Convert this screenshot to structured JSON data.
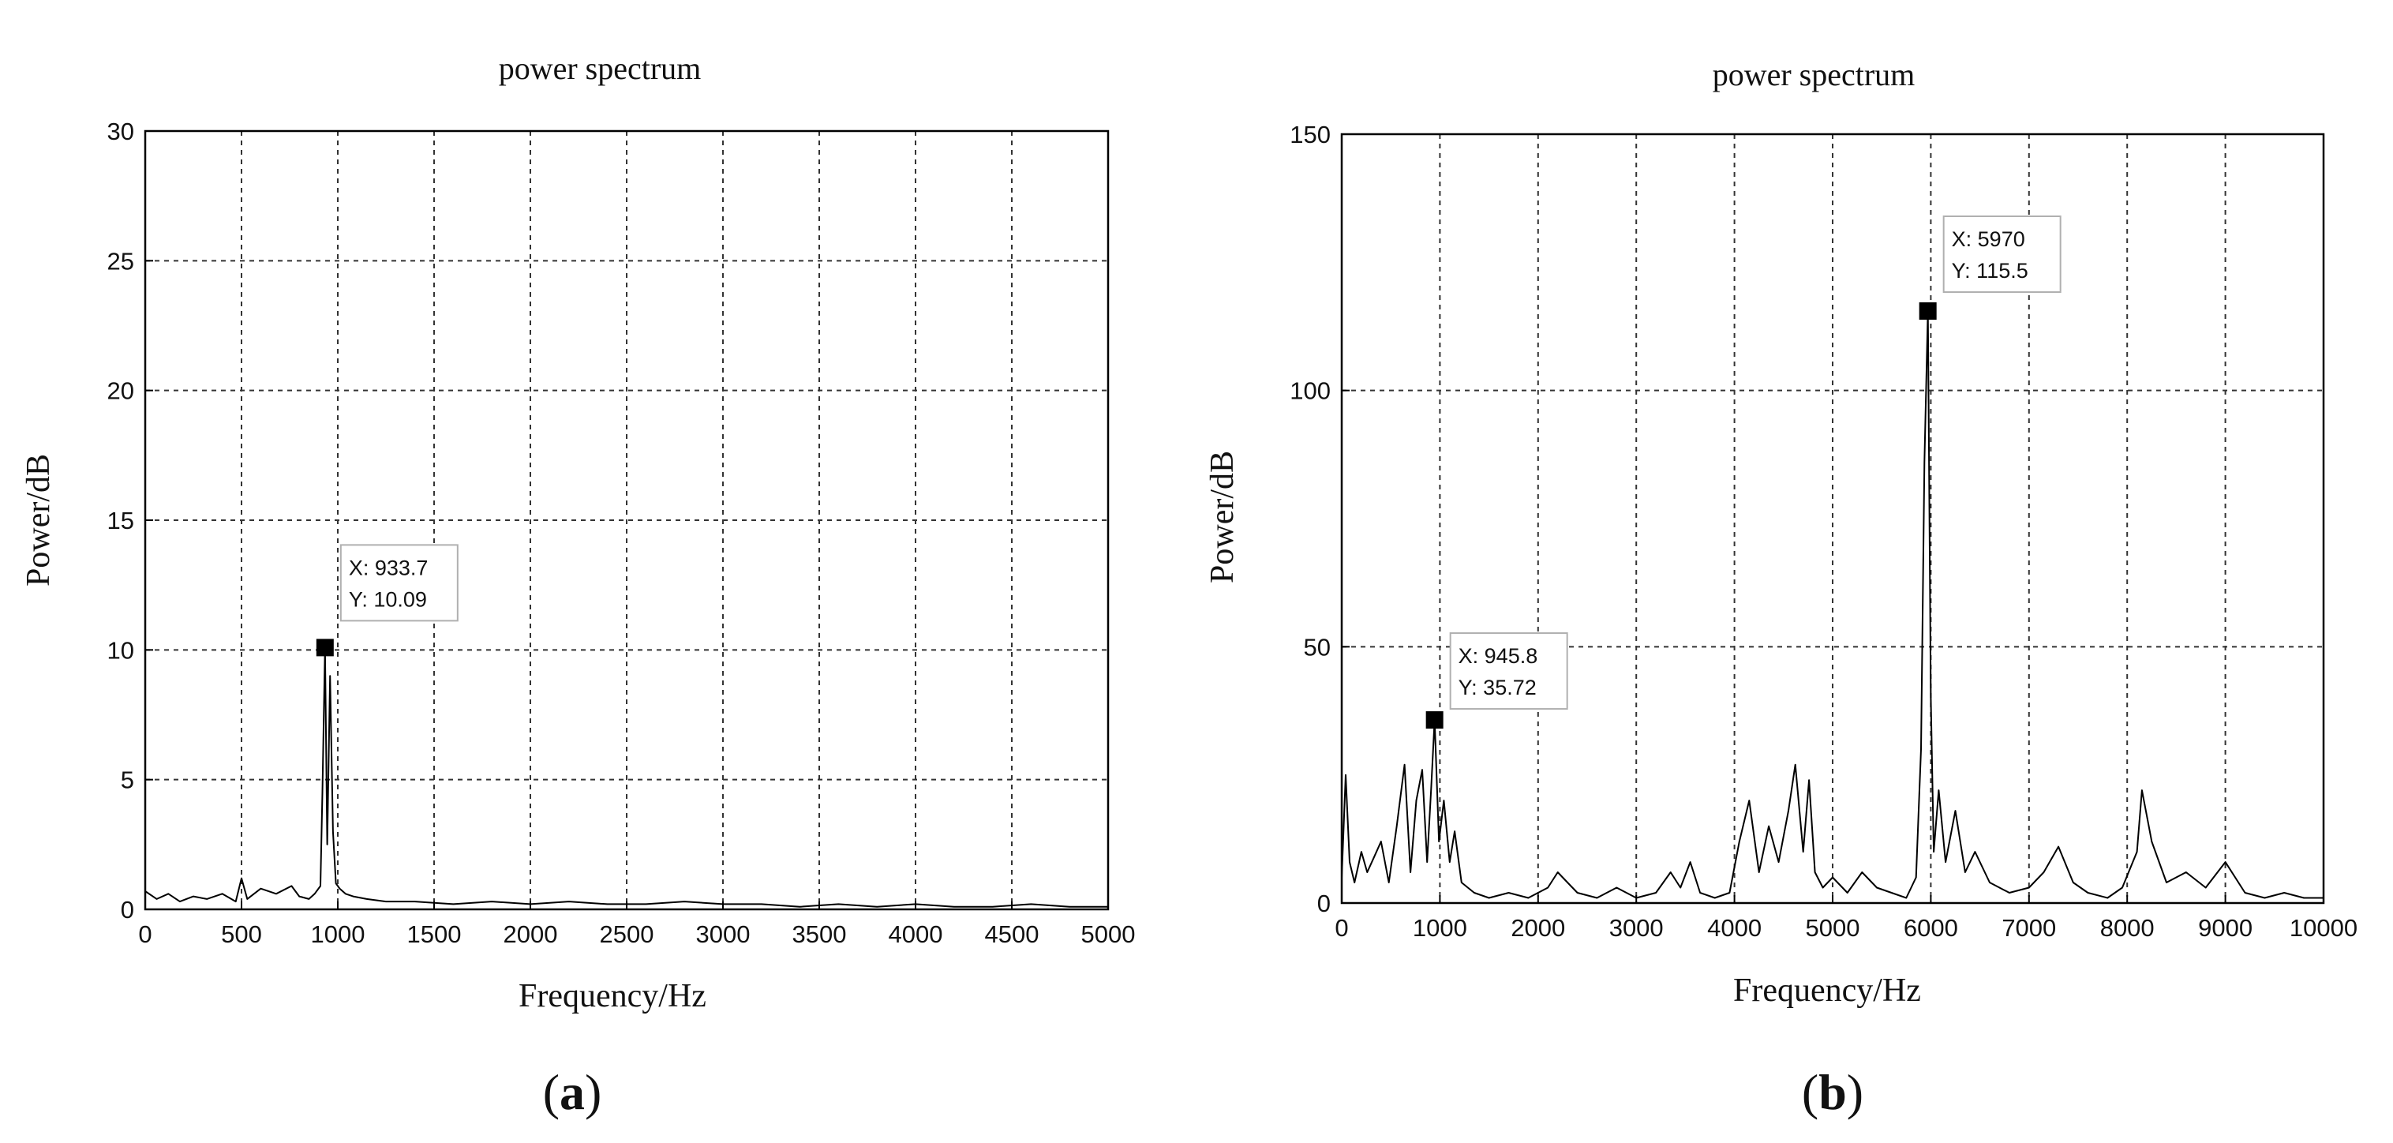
{
  "chart_data": [
    {
      "type": "line",
      "panel": "(a)",
      "panel_letter": "a",
      "title": "power spectrum",
      "xlabel": "Frequency/Hz",
      "ylabel": "Power/dB",
      "xlim": [
        0,
        5000
      ],
      "ylim": [
        0,
        30
      ],
      "xticks": [
        0,
        500,
        1000,
        1500,
        2000,
        2500,
        3000,
        3500,
        4000,
        4500,
        5000
      ],
      "yticks": [
        0,
        5,
        10,
        15,
        20,
        25,
        30
      ],
      "grid": true,
      "series": [
        {
          "x": [
            0,
            60,
            120,
            180,
            250,
            320,
            400,
            470,
            500,
            530,
            600,
            680,
            760,
            800,
            850,
            880,
            910,
            920,
            933.7,
            945,
            960,
            975,
            990,
            1010,
            1040,
            1080,
            1150,
            1250,
            1400,
            1600,
            1800,
            2000,
            2200,
            2400,
            2600,
            2800,
            3000,
            3200,
            3400,
            3600,
            3800,
            4000,
            4200,
            4400,
            4600,
            4800,
            5000
          ],
          "y": [
            0.7,
            0.4,
            0.6,
            0.3,
            0.5,
            0.4,
            0.6,
            0.3,
            1.2,
            0.4,
            0.8,
            0.6,
            0.9,
            0.5,
            0.4,
            0.6,
            0.9,
            4.5,
            10.09,
            2.5,
            9.0,
            3.0,
            1.0,
            0.8,
            0.6,
            0.5,
            0.4,
            0.3,
            0.3,
            0.2,
            0.3,
            0.2,
            0.3,
            0.2,
            0.2,
            0.3,
            0.2,
            0.2,
            0.1,
            0.2,
            0.1,
            0.2,
            0.1,
            0.1,
            0.2,
            0.1,
            0.1
          ]
        }
      ],
      "datatips": [
        {
          "x": 933.7,
          "y": 10.09,
          "line1": "X: 933.7",
          "line2": "Y: 10.09"
        }
      ]
    },
    {
      "type": "line",
      "panel": "(b)",
      "panel_letter": "b",
      "title": "power spectrum",
      "xlabel": "Frequency/Hz",
      "ylabel": "Power/dB",
      "xlim": [
        0,
        10000
      ],
      "ylim": [
        0,
        150
      ],
      "xticks": [
        0,
        1000,
        2000,
        3000,
        4000,
        5000,
        6000,
        7000,
        8000,
        9000,
        10000
      ],
      "yticks": [
        0,
        50,
        100,
        150
      ],
      "grid": true,
      "series": [
        {
          "x": [
            0,
            40,
            80,
            130,
            200,
            260,
            330,
            400,
            480,
            560,
            640,
            700,
            760,
            820,
            870,
            910,
            945.8,
            990,
            1040,
            1100,
            1150,
            1220,
            1350,
            1500,
            1700,
            1900,
            2100,
            2200,
            2300,
            2400,
            2600,
            2800,
            3000,
            3200,
            3350,
            3450,
            3550,
            3650,
            3800,
            3950,
            4050,
            4150,
            4250,
            4350,
            4450,
            4550,
            4620,
            4700,
            4760,
            4820,
            4900,
            5000,
            5150,
            5300,
            5450,
            5600,
            5750,
            5850,
            5900,
            5935,
            5970,
            6000,
            6030,
            6080,
            6150,
            6250,
            6350,
            6450,
            6600,
            6800,
            7000,
            7150,
            7300,
            7450,
            7600,
            7800,
            7950,
            8100,
            8150,
            8250,
            8400,
            8600,
            8800,
            9000,
            9200,
            9400,
            9600,
            9800,
            10000
          ],
          "y": [
            5,
            25,
            8,
            4,
            10,
            6,
            9,
            12,
            4,
            15,
            27,
            6,
            20,
            26,
            8,
            22,
            35.72,
            12,
            20,
            8,
            14,
            4,
            2,
            1,
            2,
            1,
            3,
            6,
            4,
            2,
            1,
            3,
            1,
            2,
            6,
            3,
            8,
            2,
            1,
            2,
            12,
            20,
            6,
            15,
            8,
            18,
            27,
            10,
            24,
            6,
            3,
            5,
            2,
            6,
            3,
            2,
            1,
            5,
            30,
            86,
            115.5,
            40,
            10,
            22,
            8,
            18,
            6,
            10,
            4,
            2,
            3,
            6,
            11,
            4,
            2,
            1,
            3,
            10,
            22,
            12,
            4,
            6,
            3,
            8,
            2,
            1,
            2,
            1,
            1
          ]
        }
      ],
      "datatips": [
        {
          "x": 945.8,
          "y": 35.72,
          "line1": "X: 945.8",
          "line2": "Y: 35.72"
        },
        {
          "x": 5970,
          "y": 115.5,
          "line1": "X: 5970",
          "line2": "Y: 115.5"
        }
      ]
    }
  ]
}
